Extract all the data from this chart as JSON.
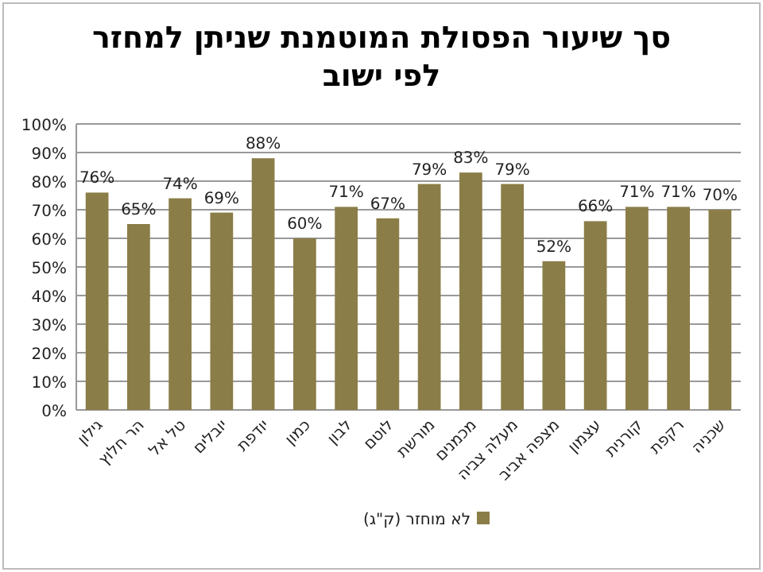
{
  "chart_data": {
    "type": "bar",
    "title": "סך שיעור הפסולת המוטמנת  שניתן למחזר\nלפי ישוב",
    "categories": [
      "גילון",
      "הר חלוץ",
      "טל אל",
      "יובלים",
      "יודפת",
      "כמון",
      "לבון",
      "לוטם",
      "מורשת",
      "מכמנים",
      "מעלה צביה",
      "מצפה אביב",
      "עצמון",
      "קורנית",
      "רקפת",
      "שכניה"
    ],
    "series": [
      {
        "name": "לא מוחזר (ק\"ג)",
        "color": "#8b7d47",
        "values": [
          76,
          65,
          74,
          69,
          88,
          60,
          71,
          67,
          79,
          83,
          79,
          52,
          66,
          71,
          71,
          70
        ],
        "value_labels": [
          "76%",
          "65%",
          "74%",
          "69%",
          "88%",
          "60%",
          "71%",
          "67%",
          "79%",
          "83%",
          "79%",
          "52%",
          "66%",
          "71%",
          "71%",
          "70%"
        ]
      }
    ],
    "ylim": [
      0,
      100
    ],
    "yticks": [
      {
        "value": 0,
        "label": "0%"
      },
      {
        "value": 10,
        "label": "10%"
      },
      {
        "value": 20,
        "label": "20%"
      },
      {
        "value": 30,
        "label": "30%"
      },
      {
        "value": 40,
        "label": "40%"
      },
      {
        "value": 50,
        "label": "50%"
      },
      {
        "value": 60,
        "label": "60%"
      },
      {
        "value": 70,
        "label": "70%"
      },
      {
        "value": 80,
        "label": "80%"
      },
      {
        "value": 90,
        "label": "90%"
      },
      {
        "value": 100,
        "label": "100%"
      }
    ],
    "grid": "y",
    "legend": "bottom"
  }
}
